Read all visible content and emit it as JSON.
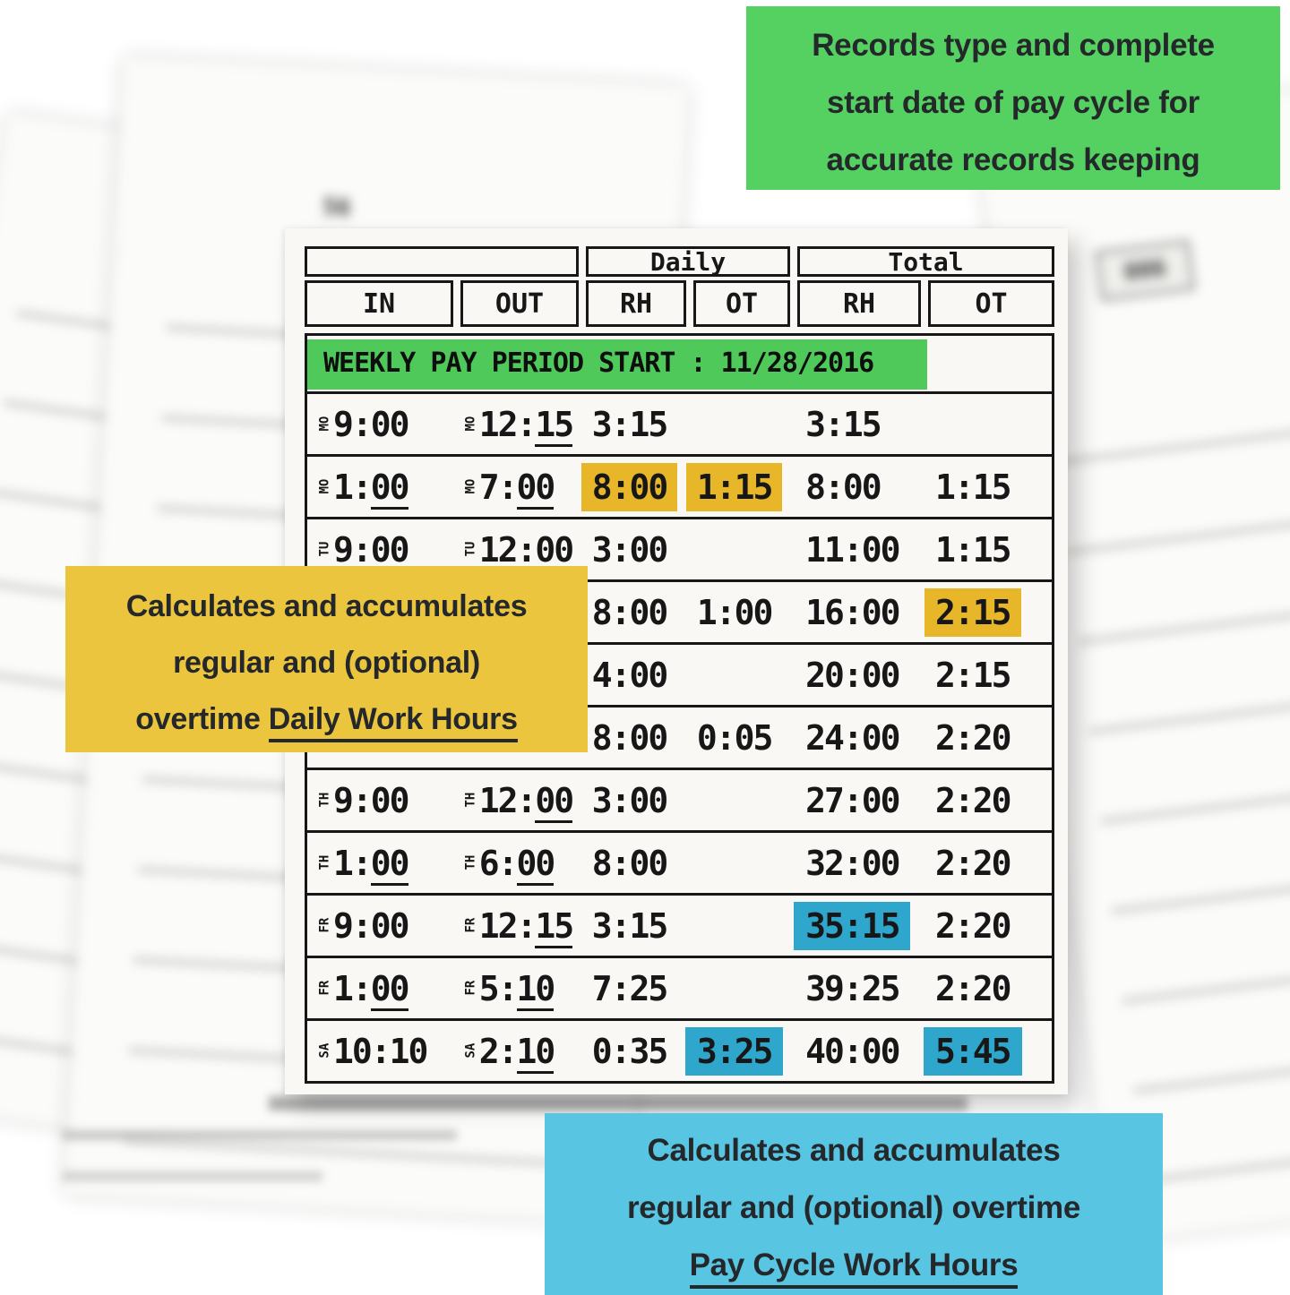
{
  "colors": {
    "green_box": "#55d162",
    "green_highlight": "#4fca5a",
    "yellow_box": "#ecc53e",
    "yellow_highlight": "#e8b629",
    "blue_box": "#58c5e3",
    "blue_highlight": "#2fa6cb",
    "callout_text": "#25282b",
    "ink": "#171717"
  },
  "callouts": {
    "green": {
      "lines": [
        "Records type and complete",
        "start date of pay cycle for",
        "accurate records keeping"
      ]
    },
    "yellow": {
      "line1": "Calculates and accumulates",
      "line2": "regular and (optional)",
      "line3_prefix": "overtime ",
      "line3_underlined": "Daily Work Hours"
    },
    "blue": {
      "line1": "Calculates and accumulates",
      "line2": "regular and (optional) overtime",
      "line3_underlined": "Pay Cycle Work Hours"
    }
  },
  "timecard": {
    "group_headers": {
      "daily": "Daily",
      "total": "Total"
    },
    "column_headers": [
      "IN",
      "OUT",
      "RH",
      "OT",
      "RH",
      "OT"
    ],
    "banner": "WEEKLY PAY PERIOD START : 11/28/2016",
    "rows": [
      {
        "in": {
          "day": "MO",
          "time": "9:00"
        },
        "out": {
          "day": "MO",
          "time": "12:15",
          "u": true
        },
        "drh": "3:15",
        "dot": "",
        "trh": "3:15",
        "tot": ""
      },
      {
        "in": {
          "day": "MO",
          "time": "1:00",
          "u": true
        },
        "out": {
          "day": "MO",
          "time": "7:00",
          "u": true
        },
        "drh": "8:00",
        "dot": "1:15",
        "trh": "8:00",
        "tot": "1:15",
        "hl": {
          "drh": "yellow",
          "dot": "yellow"
        }
      },
      {
        "in": {
          "day": "TU",
          "time": "9:00"
        },
        "out": {
          "day": "TU",
          "time": "12:00",
          "u": true
        },
        "drh": "3:00",
        "dot": "",
        "trh": "11:00",
        "tot": "1:15"
      },
      {
        "in": null,
        "out": null,
        "drh": "8:00",
        "dot": "1:00",
        "trh": "16:00",
        "tot": "2:15",
        "hl": {
          "tot": "yellow"
        }
      },
      {
        "in": null,
        "out": null,
        "drh": "4:00",
        "dot": "",
        "trh": "20:00",
        "tot": "2:15"
      },
      {
        "in": null,
        "out": null,
        "drh": "8:00",
        "dot": "0:05",
        "trh": "24:00",
        "tot": "2:20"
      },
      {
        "in": {
          "day": "TH",
          "time": "9:00"
        },
        "out": {
          "day": "TH",
          "time": "12:00",
          "u": true
        },
        "drh": "3:00",
        "dot": "",
        "trh": "27:00",
        "tot": "2:20"
      },
      {
        "in": {
          "day": "TH",
          "time": "1:00",
          "u": true
        },
        "out": {
          "day": "TH",
          "time": "6:00",
          "u": true
        },
        "drh": "8:00",
        "dot": "",
        "trh": "32:00",
        "tot": "2:20"
      },
      {
        "in": {
          "day": "FR",
          "time": "9:00"
        },
        "out": {
          "day": "FR",
          "time": "12:15",
          "u": true
        },
        "drh": "3:15",
        "dot": "",
        "trh": "35:15",
        "tot": "2:20",
        "hl": {
          "trh": "blue"
        }
      },
      {
        "in": {
          "day": "FR",
          "time": "1:00",
          "u": true
        },
        "out": {
          "day": "FR",
          "time": "5:10",
          "u": true
        },
        "drh": "7:25",
        "dot": "",
        "trh": "39:25",
        "tot": "2:20"
      },
      {
        "in": {
          "day": "SA",
          "time": "10:10"
        },
        "out": {
          "day": "SA",
          "time": "2:10",
          "u": true
        },
        "drh": "0:35",
        "dot": "3:25",
        "trh": "40:00",
        "tot": "5:45",
        "hl": {
          "dot": "blue",
          "tot": "blue"
        }
      }
    ]
  },
  "background": {
    "left_card_label": "56",
    "middle_card_label": "56",
    "right_card_label": "006"
  }
}
